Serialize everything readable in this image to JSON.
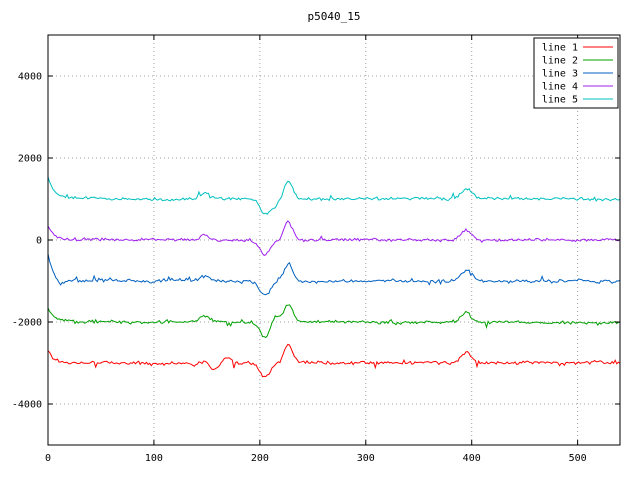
{
  "title": "p5040_15",
  "chart_data": {
    "type": "line",
    "title": "p5040_15",
    "xlabel": "",
    "ylabel": "",
    "xlim": [
      0,
      540
    ],
    "ylim": [
      -5000,
      5000
    ],
    "xticks": [
      0,
      100,
      200,
      300,
      400,
      500
    ],
    "yticks": [
      -4000,
      -2000,
      0,
      2000,
      4000
    ],
    "grid": true,
    "grid_color": "#a0a0a0",
    "border_color": "#000000",
    "background": "#ffffff",
    "legend_position": "top-right",
    "legend_box": true,
    "sample_step": 1.5,
    "events": [
      {
        "x": 148,
        "amplitude": 150,
        "width": 4
      },
      {
        "x": 205,
        "amplitude": -350,
        "width": 5
      },
      {
        "x": 227,
        "amplitude": 430,
        "width": 4
      },
      {
        "x": 395,
        "amplitude": 260,
        "width": 5
      }
    ],
    "series": [
      {
        "name": "line 1",
        "color": "#ff0000",
        "baseline": -3000,
        "start_amplitude": 300,
        "noise_amplitude": 60,
        "seed": 101,
        "extra_events": [
          {
            "x": 155,
            "amplitude": -140,
            "width": 8
          },
          {
            "x": 168,
            "amplitude": 160,
            "width": 4
          }
        ]
      },
      {
        "name": "line 2",
        "color": "#00a000",
        "baseline": -2000,
        "start_amplitude": 350,
        "noise_amplitude": 55,
        "seed": 202,
        "extra_events": [
          {
            "x": 215,
            "amplitude": 180,
            "width": 4
          }
        ]
      },
      {
        "name": "line 3",
        "color": "#0060c0",
        "baseline": -1000,
        "start_amplitude": 650,
        "noise_amplitude": 55,
        "seed": 303,
        "extra_events": [
          {
            "x": 12,
            "amplitude": -160,
            "width": 5
          }
        ]
      },
      {
        "name": "line 4",
        "color": "#a020f0",
        "baseline": 0,
        "start_amplitude": 350,
        "noise_amplitude": 50,
        "seed": 404,
        "extra_events": []
      },
      {
        "name": "line 5",
        "color": "#00c0c0",
        "baseline": 1000,
        "start_amplitude": 550,
        "noise_amplitude": 50,
        "seed": 505,
        "extra_events": [
          {
            "x": 215,
            "amplitude": -150,
            "width": 4
          }
        ]
      }
    ]
  }
}
